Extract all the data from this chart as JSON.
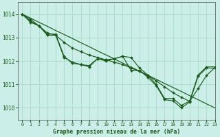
{
  "title": "Graphe pression niveau de la mer (hPa)",
  "bg_color": "#cceee8",
  "grid_color": "#aaddcc",
  "line_color": "#1a5c1a",
  "marker_color": "#1a5c1a",
  "xlim": [
    -0.5,
    23
  ],
  "ylim": [
    1009.5,
    1014.5
  ],
  "xticks": [
    0,
    1,
    2,
    3,
    4,
    5,
    6,
    7,
    8,
    9,
    10,
    11,
    12,
    13,
    14,
    15,
    16,
    17,
    18,
    19,
    20,
    21,
    22,
    23
  ],
  "yticks": [
    1010,
    1011,
    1012,
    1013,
    1014
  ],
  "series1": [
    1014.0,
    1013.7,
    1013.5,
    1013.15,
    1013.15,
    1012.2,
    1011.9,
    1011.85,
    1011.8,
    1012.1,
    1012.0,
    1012.1,
    1012.2,
    1012.15,
    1011.7,
    1011.4,
    1011.0,
    1010.4,
    1010.4,
    1010.1,
    1010.3,
    1011.4,
    1011.75,
    1011.75
  ],
  "series2": [
    1014.0,
    1013.65,
    1013.5,
    1013.1,
    1013.1,
    1012.15,
    1011.95,
    1011.85,
    1011.75,
    1012.1,
    1012.05,
    1012.1,
    1012.2,
    1011.6,
    1011.6,
    1011.3,
    1010.95,
    1010.35,
    1010.3,
    1010.0,
    1010.25,
    1011.35,
    1011.7,
    1011.7
  ],
  "series_straight": [
    1014.0,
    1013.83,
    1013.65,
    1013.48,
    1013.3,
    1013.13,
    1012.96,
    1012.78,
    1012.61,
    1012.43,
    1012.26,
    1012.09,
    1011.91,
    1011.74,
    1011.57,
    1011.39,
    1011.22,
    1011.04,
    1010.87,
    1010.7,
    1010.52,
    1010.35,
    1010.17,
    1010.0
  ],
  "series_smooth": [
    1014.0,
    1013.78,
    1013.5,
    1013.2,
    1013.1,
    1012.8,
    1012.55,
    1012.4,
    1012.25,
    1012.15,
    1012.05,
    1011.95,
    1011.85,
    1011.7,
    1011.55,
    1011.38,
    1011.15,
    1010.9,
    1010.65,
    1010.45,
    1010.28,
    1010.82,
    1011.38,
    1011.72
  ]
}
